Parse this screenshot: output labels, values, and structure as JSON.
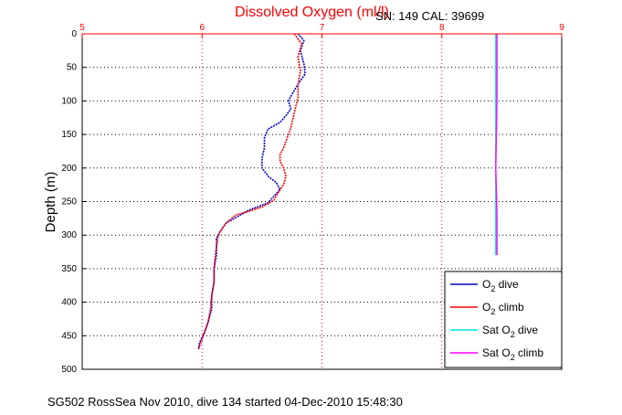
{
  "chart_data": {
    "type": "line",
    "title": "Dissolved Oxygen (ml/l)",
    "sensor_label": "SN: 149  CAL: 39699",
    "ylabel": "Depth (m)",
    "xlabel": "",
    "footer": "SG502 RossSea Nov 2010, dive 134 started 04-Dec-2010 15:48:30",
    "xlim": [
      5,
      9
    ],
    "ylim": [
      0,
      500
    ],
    "y_inverted": true,
    "x_ticks": [
      "5",
      "6",
      "7",
      "8",
      "9"
    ],
    "y_ticks": [
      "0",
      "50",
      "100",
      "150",
      "200",
      "250",
      "300",
      "350",
      "400",
      "450",
      "500"
    ],
    "grid": true,
    "legend_position": "bottom-right",
    "colors": {
      "axis_top": "#ff0000",
      "title": "#ff0000",
      "o2_dive": "#0000cc",
      "o2_climb": "#ff0000",
      "sat_dive": "#00e5e5",
      "sat_climb": "#ff00ff",
      "grid_vertical": "#ff0000",
      "grid_horizontal": "#000000"
    },
    "series": [
      {
        "name": "O2 dive",
        "marker": "dotted",
        "points": [
          [
            6.8,
            0
          ],
          [
            6.85,
            10
          ],
          [
            6.82,
            25
          ],
          [
            6.85,
            45
          ],
          [
            6.86,
            60
          ],
          [
            6.8,
            75
          ],
          [
            6.75,
            90
          ],
          [
            6.72,
            100
          ],
          [
            6.74,
            112
          ],
          [
            6.7,
            122
          ],
          [
            6.65,
            132
          ],
          [
            6.55,
            142
          ],
          [
            6.52,
            155
          ],
          [
            6.52,
            170
          ],
          [
            6.5,
            185
          ],
          [
            6.5,
            200
          ],
          [
            6.55,
            212
          ],
          [
            6.62,
            222
          ],
          [
            6.65,
            232
          ],
          [
            6.6,
            242
          ],
          [
            6.55,
            252
          ],
          [
            6.4,
            262
          ],
          [
            6.3,
            272
          ],
          [
            6.2,
            282
          ],
          [
            6.15,
            295
          ],
          [
            6.12,
            305
          ],
          [
            6.12,
            318
          ],
          [
            6.12,
            330
          ],
          [
            6.1,
            350
          ],
          [
            6.1,
            370
          ],
          [
            6.08,
            390
          ],
          [
            6.08,
            410
          ],
          [
            6.05,
            430
          ],
          [
            6.02,
            445
          ],
          [
            5.98,
            460
          ],
          [
            5.97,
            470
          ]
        ]
      },
      {
        "name": "O2 climb",
        "marker": "dotted",
        "points": [
          [
            6.77,
            0
          ],
          [
            6.83,
            15
          ],
          [
            6.8,
            35
          ],
          [
            6.82,
            55
          ],
          [
            6.8,
            75
          ],
          [
            6.8,
            95
          ],
          [
            6.78,
            110
          ],
          [
            6.76,
            125
          ],
          [
            6.74,
            140
          ],
          [
            6.72,
            150
          ],
          [
            6.7,
            160
          ],
          [
            6.68,
            170
          ],
          [
            6.65,
            180
          ],
          [
            6.65,
            190
          ],
          [
            6.68,
            200
          ],
          [
            6.7,
            212
          ],
          [
            6.68,
            225
          ],
          [
            6.63,
            238
          ],
          [
            6.6,
            248
          ],
          [
            6.5,
            258
          ],
          [
            6.4,
            264
          ],
          [
            6.28,
            270
          ],
          [
            6.2,
            282
          ],
          [
            6.15,
            295
          ],
          [
            6.13,
            305
          ],
          [
            6.12,
            318
          ],
          [
            6.11,
            330
          ],
          [
            6.1,
            350
          ],
          [
            6.1,
            370
          ],
          [
            6.08,
            390
          ],
          [
            6.07,
            410
          ],
          [
            6.05,
            430
          ],
          [
            6.02,
            445
          ],
          [
            5.99,
            460
          ],
          [
            5.97,
            470
          ]
        ]
      },
      {
        "name": "Sat O2 dive",
        "marker": "line",
        "points": [
          [
            8.45,
            0
          ],
          [
            8.45,
            100
          ],
          [
            8.45,
            200
          ],
          [
            8.45,
            270
          ],
          [
            8.45,
            330
          ]
        ]
      },
      {
        "name": "Sat O2 climb",
        "marker": "line",
        "points": [
          [
            8.46,
            0
          ],
          [
            8.46,
            100
          ],
          [
            8.45,
            200
          ],
          [
            8.46,
            270
          ],
          [
            8.46,
            330
          ]
        ]
      }
    ]
  }
}
